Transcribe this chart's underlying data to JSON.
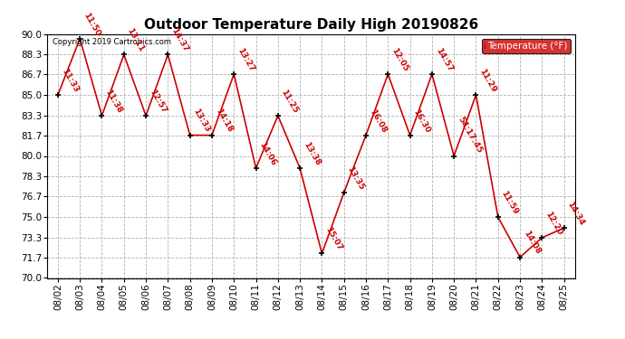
{
  "title": "Outdoor Temperature Daily High 20190826",
  "copyright": "Copyright 2019 Cartronics.com",
  "dates": [
    "08/02",
    "08/03",
    "08/04",
    "08/05",
    "08/06",
    "08/07",
    "08/08",
    "08/09",
    "08/10",
    "08/11",
    "08/12",
    "08/13",
    "08/14",
    "08/15",
    "08/16",
    "08/17",
    "08/18",
    "08/19",
    "08/20",
    "08/21",
    "08/22",
    "08/23",
    "08/24",
    "08/25"
  ],
  "temps": [
    85.0,
    89.6,
    83.3,
    88.3,
    83.3,
    88.3,
    81.7,
    81.7,
    86.7,
    79.0,
    83.3,
    79.0,
    72.0,
    77.0,
    81.7,
    86.7,
    81.7,
    86.7,
    80.0,
    85.0,
    75.0,
    71.7,
    73.3,
    74.1
  ],
  "time_labels": [
    "11:33",
    "11:50",
    "11:38",
    "13:11",
    "12:57",
    "14:37",
    "13:33",
    "14:18",
    "13:27",
    "14:06",
    "11:25",
    "13:38",
    "15:07",
    "13:35",
    "16:08",
    "12:05",
    "16:30",
    "14:57",
    "54:17:45",
    "11:29",
    "11:59",
    "14:08",
    "12:20",
    "14:34"
  ],
  "ylim": [
    70.0,
    90.0
  ],
  "yticks": [
    70.0,
    71.7,
    73.3,
    75.0,
    76.7,
    78.3,
    80.0,
    81.7,
    83.3,
    85.0,
    86.7,
    88.3,
    90.0
  ],
  "line_color": "#cc0000",
  "marker_color": "#000000",
  "label_color": "#cc0000",
  "bg_color": "#ffffff",
  "plot_bg_color": "#ffffff",
  "grid_color": "#aaaaaa",
  "legend_text": "Temperature (°F)",
  "legend_bg": "#cc0000",
  "legend_text_color": "#ffffff",
  "title_fontsize": 11,
  "label_fontsize": 6.5,
  "tick_fontsize": 7.5
}
